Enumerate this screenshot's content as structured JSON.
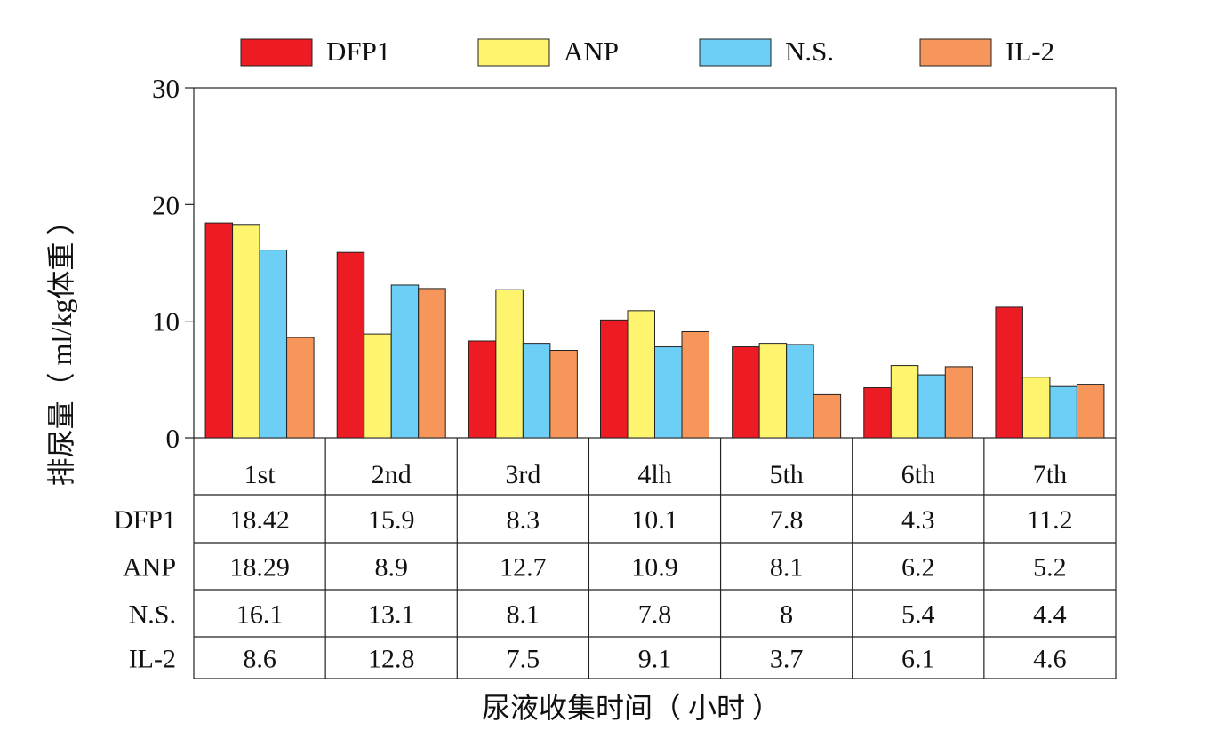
{
  "chart_data": {
    "type": "bar",
    "categories": [
      "1st",
      "2nd",
      "3rd",
      "4lh",
      "5th",
      "6th",
      "7th"
    ],
    "series": [
      {
        "name": "DFP1",
        "color": "#ed1c24",
        "values": [
          18.42,
          15.9,
          8.3,
          10.1,
          7.8,
          4.3,
          11.2
        ],
        "labels": [
          "18.42",
          "15.9",
          "8.3",
          "10.1",
          "7.8",
          "4.3",
          "11.2"
        ]
      },
      {
        "name": "ANP",
        "color": "#fff46e",
        "values": [
          18.29,
          8.9,
          12.7,
          10.9,
          8.1,
          6.2,
          5.2
        ],
        "labels": [
          "18.29",
          "8.9",
          "12.7",
          "10.9",
          "8.1",
          "6.2",
          "5.2"
        ]
      },
      {
        "name": "N.S.",
        "color": "#6dcff6",
        "values": [
          16.1,
          13.1,
          8.1,
          7.8,
          8,
          5.4,
          4.4
        ],
        "labels": [
          "16.1",
          "13.1",
          "8.1",
          "7.8",
          "8",
          "5.4",
          "4.4"
        ]
      },
      {
        "name": "IL-2",
        "color": "#f7965a",
        "values": [
          8.6,
          12.8,
          7.5,
          9.1,
          3.7,
          6.1,
          4.6
        ],
        "labels": [
          "8.6",
          "12.8",
          "7.5",
          "9.1",
          "3.7",
          "6.1",
          "4.6"
        ]
      }
    ],
    "title": "",
    "xlabel": "尿液收集时间（ 小时 ）",
    "ylabel": "排尿量（ ml/kg体重 ）",
    "ylim": [
      0,
      30
    ],
    "yticks": [
      "0",
      "10",
      "20",
      "30"
    ],
    "grid": false,
    "legend_position": "top",
    "data_table": true
  }
}
